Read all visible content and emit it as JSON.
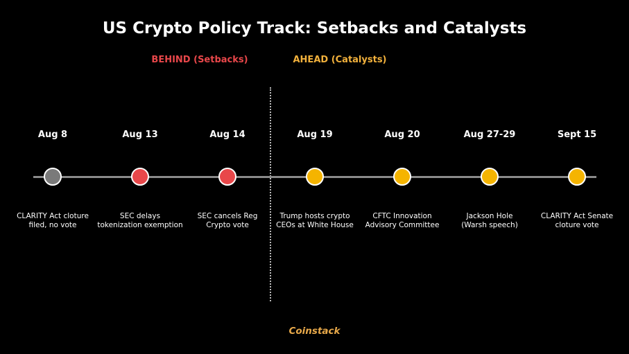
{
  "title": "US Crypto Policy Track: Setbacks and Catalysts",
  "sections": {
    "behind": {
      "label": "BEHIND (Setbacks)",
      "color": "#e8474a"
    },
    "ahead": {
      "label": "AHEAD (Catalysts)",
      "color": "#f2b13c"
    }
  },
  "colors": {
    "neutral": "#7a7a7a",
    "setback": "#e8474a",
    "catalyst": "#f5b400",
    "timeline": "#8a8a8a"
  },
  "events": [
    {
      "date": "Aug 8",
      "lines": [
        "CLARITY Act cloture",
        "filed, no vote"
      ],
      "status": "neutral"
    },
    {
      "date": "Aug 13",
      "lines": [
        "SEC delays",
        "tokenization exemption"
      ],
      "status": "setback"
    },
    {
      "date": "Aug 14",
      "lines": [
        "SEC cancels Reg",
        "Crypto vote"
      ],
      "status": "setback"
    },
    {
      "date": "Aug 19",
      "lines": [
        "Trump hosts crypto",
        "CEOs at White House"
      ],
      "status": "catalyst"
    },
    {
      "date": "Aug 20",
      "lines": [
        "CFTC Innovation",
        "Advisory Committee"
      ],
      "status": "catalyst"
    },
    {
      "date": "Aug 27-29",
      "lines": [
        "Jackson Hole",
        "(Warsh speech)"
      ],
      "status": "catalyst"
    },
    {
      "date": "Sept 15",
      "lines": [
        "CLARITY Act Senate",
        "cloture vote"
      ],
      "status": "catalyst"
    }
  ],
  "brand": {
    "text": "Coinstack",
    "color": "#e8a94a"
  }
}
